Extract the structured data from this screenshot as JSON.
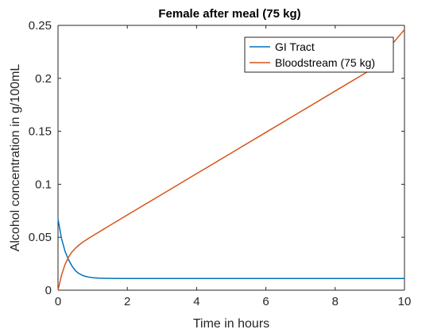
{
  "chart_data": {
    "type": "line",
    "title": "Female after meal (75 kg)",
    "xlabel": "Time in hours",
    "ylabel": "Alcohol concentration in g/100mL",
    "xlim": [
      0,
      10
    ],
    "ylim": [
      0,
      0.25
    ],
    "xticks": [
      0,
      2,
      4,
      6,
      8,
      10
    ],
    "xtick_labels": [
      "0",
      "2",
      "4",
      "6",
      "8",
      "10"
    ],
    "yticks": [
      0,
      0.05,
      0.1,
      0.15,
      0.2,
      0.25
    ],
    "ytick_labels": [
      "0",
      "0.05",
      "0.1",
      "0.15",
      "0.2",
      "0.25"
    ],
    "grid": false,
    "legend_position": "top-right",
    "series": [
      {
        "name": "GI Tract",
        "color": "#0072BD",
        "x": [
          0,
          0.1,
          0.2,
          0.3,
          0.4,
          0.5,
          0.6,
          0.7,
          0.8,
          0.9,
          1.0,
          1.2,
          1.5,
          2,
          3,
          4,
          5,
          6,
          7,
          8,
          9,
          10
        ],
        "y": [
          0.067,
          0.049,
          0.037,
          0.029,
          0.023,
          0.0185,
          0.0158,
          0.0141,
          0.013,
          0.0123,
          0.0118,
          0.0113,
          0.0111,
          0.011,
          0.011,
          0.011,
          0.011,
          0.011,
          0.011,
          0.011,
          0.011,
          0.011
        ]
      },
      {
        "name": "Bloodstream (75 kg)",
        "color": "#D95319",
        "x": [
          0,
          0.1,
          0.2,
          0.3,
          0.4,
          0.5,
          0.6,
          0.7,
          0.8,
          0.9,
          1.0,
          1.5,
          2,
          3,
          4,
          5,
          6,
          7,
          8,
          9,
          10
        ],
        "y": [
          0,
          0.014,
          0.024,
          0.031,
          0.036,
          0.0395,
          0.0425,
          0.045,
          0.0472,
          0.0493,
          0.0513,
          0.0612,
          0.071,
          0.0905,
          0.11,
          0.1295,
          0.149,
          0.1685,
          0.188,
          0.2075,
          0.246
        ]
      }
    ]
  }
}
